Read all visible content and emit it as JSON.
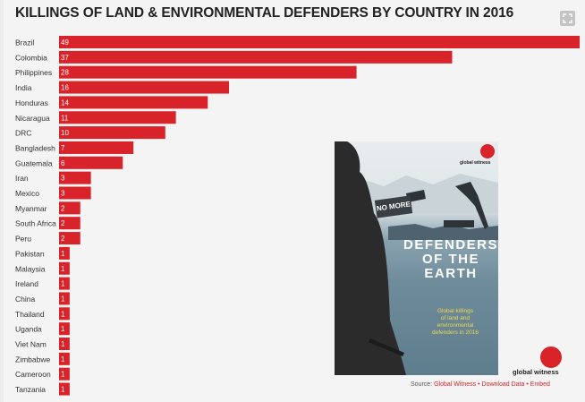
{
  "title": "KILLINGS OF LAND & ENVIRONMENTAL DEFENDERS BY COUNTRY IN 2016",
  "expand_icon": "expand-icon",
  "colors": {
    "bar": "#d8232a",
    "background": "#f4f4f4",
    "text": "#333333",
    "cover_text": "#ffffff",
    "cover_subtitle": "#f2d84a"
  },
  "chart_data": {
    "type": "bar",
    "orientation": "horizontal",
    "title": "KILLINGS OF LAND & ENVIRONMENTAL DEFENDERS BY COUNTRY IN 2016",
    "categories": [
      "Brazil",
      "Colombia",
      "Philippines",
      "India",
      "Honduras",
      "Nicaragua",
      "DRC",
      "Bangladesh",
      "Guatemala",
      "Iran",
      "Mexico",
      "Myanmar",
      "South Africa",
      "Peru",
      "Pakistan",
      "Malaysia",
      "Ireland",
      "China",
      "Thailand",
      "Uganda",
      "Viet Nam",
      "Zimbabwe",
      "Cameroon",
      "Tanzania"
    ],
    "values": [
      49,
      37,
      28,
      16,
      14,
      11,
      10,
      7,
      6,
      3,
      3,
      2,
      2,
      2,
      1,
      1,
      1,
      1,
      1,
      1,
      1,
      1,
      1,
      1
    ],
    "xlim": [
      0,
      49
    ],
    "grid": false,
    "legend": "none",
    "data_labels": true
  },
  "cover": {
    "logo_text": "global witness",
    "sign_text": "NO MORE",
    "headline": [
      "DEFENDERS",
      "OF THE",
      "EARTH"
    ],
    "subtitle": [
      "Global killings",
      "of land and",
      "environmental",
      "defenders in 2016"
    ]
  },
  "brand_logo_text": "global witness",
  "source": {
    "prefix": "Source:",
    "source_link": "Global Witness",
    "separator": "•",
    "download_link": "Download Data",
    "embed_link": "Embed"
  }
}
